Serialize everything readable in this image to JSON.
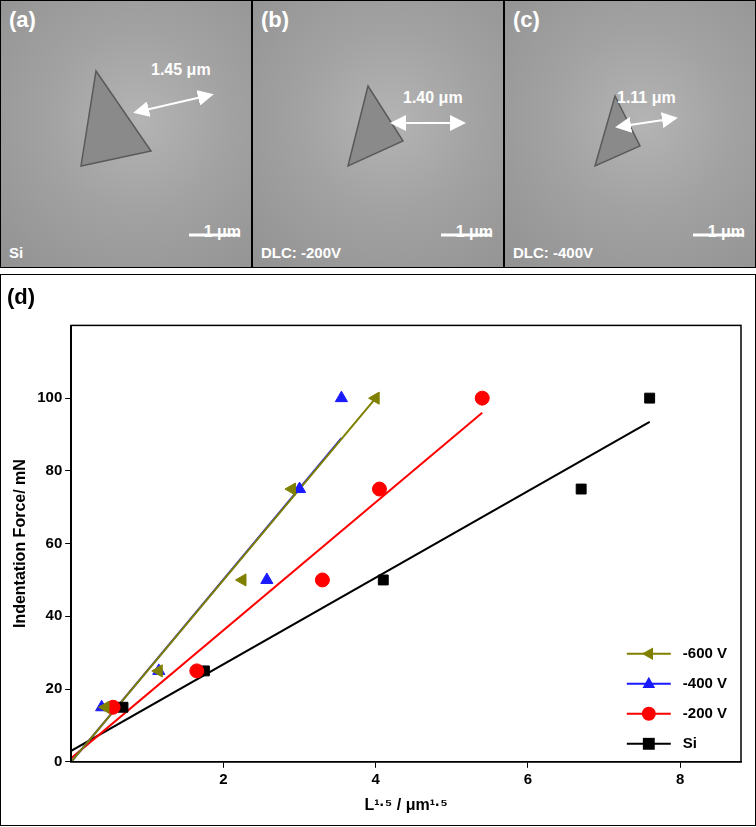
{
  "panels": [
    {
      "letter": "(a)",
      "measure": "1.45 μm",
      "scale_bar": "1 μm",
      "label": "Si"
    },
    {
      "letter": "(b)",
      "measure": "1.40 μm",
      "scale_bar": "1 μm",
      "label": "DLC: -200V"
    },
    {
      "letter": "(c)",
      "measure": "1.11 μm",
      "scale_bar": "1 μm",
      "label": "DLC: -400V"
    }
  ],
  "chart_data": {
    "type": "scatter",
    "title": "(d)",
    "x_label": "L¹·⁵ / μm¹·⁵",
    "y_label": "Indentation Force/ mN",
    "xlim": [
      0,
      8.8
    ],
    "xticks": [
      2,
      4,
      6,
      8
    ],
    "ylim": [
      0,
      120
    ],
    "yticks": [
      0,
      20,
      40,
      60,
      80,
      100
    ],
    "grid": false,
    "legend": "lower right",
    "series": [
      {
        "name": "-600 V",
        "color": "#808000",
        "marker": "triangle_left",
        "x": [
          0.45,
          1.15,
          2.25,
          2.9,
          4.0
        ],
        "values": [
          15,
          25,
          50,
          75,
          100
        ],
        "fit": {
          "x": [
            0,
            4.0
          ],
          "values": [
            0,
            100
          ]
        }
      },
      {
        "name": "-400 V",
        "color": "#1a1aff",
        "marker": "triangle",
        "x": [
          0.4,
          1.15,
          2.57,
          3.0,
          3.55
        ],
        "values": [
          15,
          25,
          50,
          75,
          100
        ],
        "fit": {
          "x": [
            0,
            3.55
          ],
          "values": [
            0,
            89
          ]
        }
      },
      {
        "name": "-200 V",
        "color": "#ff0000",
        "marker": "circle",
        "x": [
          0.55,
          1.65,
          3.3,
          4.05,
          5.4
        ],
        "values": [
          15,
          25,
          50,
          75,
          100
        ],
        "fit": {
          "x": [
            0,
            5.4
          ],
          "values": [
            1,
            96
          ]
        }
      },
      {
        "name": "Si",
        "color": "#000000",
        "marker": "square",
        "x": [
          0.68,
          1.75,
          4.1,
          6.7,
          7.6
        ],
        "values": [
          15,
          25,
          50,
          75,
          100
        ],
        "fit": {
          "x": [
            0,
            7.6
          ],
          "values": [
            3,
            93.5
          ]
        }
      }
    ]
  }
}
